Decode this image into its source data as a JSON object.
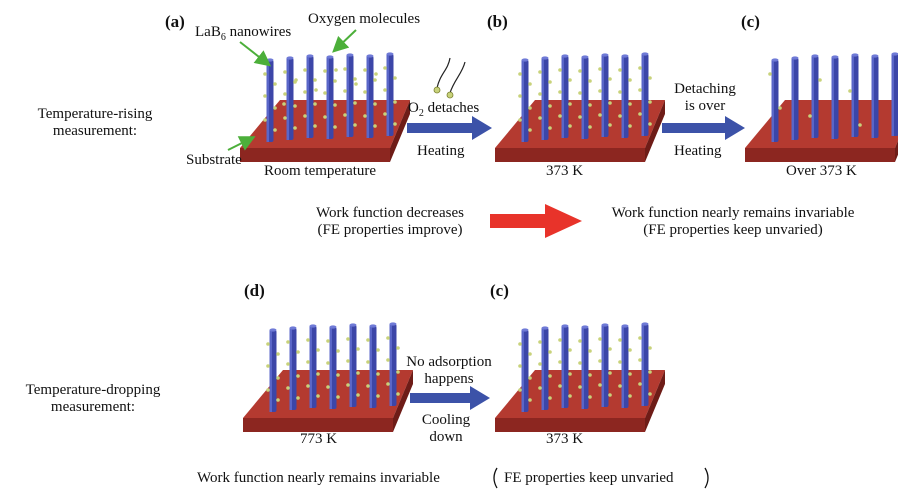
{
  "colors": {
    "substrate_top": "#b43a30",
    "substrate_front": "#8c2620",
    "substrate_side": "#6e1c17",
    "nanowire": "#3c46a8",
    "nanowire_light": "#5a66c8",
    "oxygen_dot": "#c8d27a",
    "process_arrow": "#3c52a8",
    "result_arrow": "#e8332a",
    "callout_arrow": "#4caf3a"
  },
  "labels": {
    "panel_a": "(a)",
    "panel_b": "(b)",
    "panel_c1": "(c)",
    "panel_d": "(d)",
    "panel_c2": "(c)",
    "lab6_nanowires_prefix": "LaB",
    "lab6_nanowires_sub": "6",
    "lab6_nanowires_suffix": " nanowires",
    "oxygen_molecules": "Oxygen molecules",
    "substrate": "Substrate",
    "room_temperature": "Room temperature",
    "temp_373_b": "373 K",
    "over_373": "Over 373 K",
    "temp_773": "773 K",
    "temp_373_e": "373 K",
    "rising_line1": "Temperature-rising",
    "rising_line2": "measurement:",
    "dropping_line1": "Temperature-dropping",
    "dropping_line2": "measurement:",
    "o2_prefix": "O",
    "o2_sub": "2",
    "o2_suffix": " detaches",
    "heating_1": "Heating",
    "detaching_line1": "Detaching",
    "detaching_line2": "is over",
    "heating_2": "Heating",
    "no_adsorption_line1": "No adsorption",
    "no_adsorption_line2": "happens",
    "cooling_line1": "Cooling",
    "cooling_line2": "down",
    "wf_decreases_line1": "Work function decreases",
    "wf_decreases_line2": "(FE properties improve)",
    "wf_invariable_line1": "Work function nearly remains invariable",
    "wf_invariable_line2": "(FE properties keep unvaried)",
    "bottom_summary_part1": "Work function nearly remains invariable",
    "bottom_summary_part2": "FE properties keep unvaried"
  }
}
